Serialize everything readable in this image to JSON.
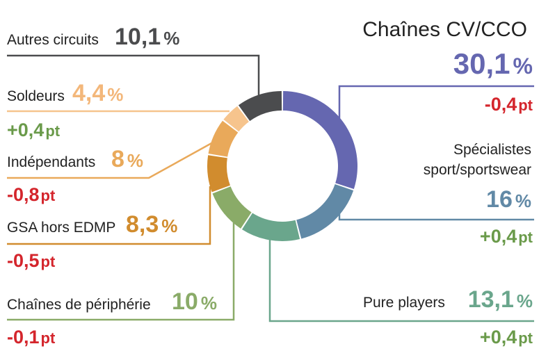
{
  "chart_data": {
    "type": "donut",
    "categories": [
      "Chaînes CV/CCO",
      "Spécialistes sport/sportswear",
      "Pure players",
      "Chaînes de périphérie",
      "GSA hors EDMP",
      "Indépendants",
      "Soldeurs",
      "Autres circuits"
    ],
    "values": [
      30.1,
      16,
      13.1,
      10,
      8.3,
      8,
      4.4,
      10.1
    ],
    "colors": [
      "#6567b0",
      "#6189a6",
      "#6aa68c",
      "#8aab68",
      "#d18c2e",
      "#e9a95a",
      "#f6c48d",
      "#4b4c4e"
    ],
    "changes_colors": {
      "negative": "#d4252c",
      "positive": "#6a9a4a"
    }
  },
  "segments": [
    {
      "name_lines": [
        "Chaînes CV/CCO"
      ],
      "value": "30,1",
      "unit": "%",
      "change": "-0,4",
      "change_unit": "pt",
      "color": "#6567b0",
      "change_color": "#d4252c"
    },
    {
      "name_lines": [
        "Spécialistes",
        "sport/sportswear"
      ],
      "value": "16",
      "unit": "%",
      "change": "+0,4",
      "change_unit": "pt",
      "color": "#6189a6",
      "change_color": "#6a9a4a"
    },
    {
      "name_lines": [
        "Pure players"
      ],
      "value": "13,1",
      "unit": "%",
      "change": "+0,4",
      "change_unit": "pt",
      "color": "#6aa68c",
      "change_color": "#6a9a4a"
    },
    {
      "name_lines": [
        "Chaînes de périphérie"
      ],
      "value": "10",
      "unit": "%",
      "change": "-0,1",
      "change_unit": "pt",
      "color": "#8aab68",
      "change_color": "#d4252c"
    },
    {
      "name_lines": [
        "GSA hors EDMP"
      ],
      "value": "8,3",
      "unit": "%",
      "change": "-0,5",
      "change_unit": "pt",
      "color": "#d18c2e",
      "change_color": "#d4252c"
    },
    {
      "name_lines": [
        "Indépendants"
      ],
      "value": "8",
      "unit": "%",
      "change": "-0,8",
      "change_unit": "pt",
      "color": "#e9a95a",
      "change_color": "#d4252c"
    },
    {
      "name_lines": [
        "Soldeurs"
      ],
      "value": "4,4",
      "unit": "%",
      "change": "+0,4",
      "change_unit": "pt",
      "color": "#f6c48d",
      "change_color": "#6a9a4a"
    },
    {
      "name_lines": [
        "Autres circuits"
      ],
      "value": "10,1",
      "unit": "%",
      "change": "",
      "change_unit": "",
      "color": "#4b4c4e",
      "change_color": ""
    }
  ]
}
